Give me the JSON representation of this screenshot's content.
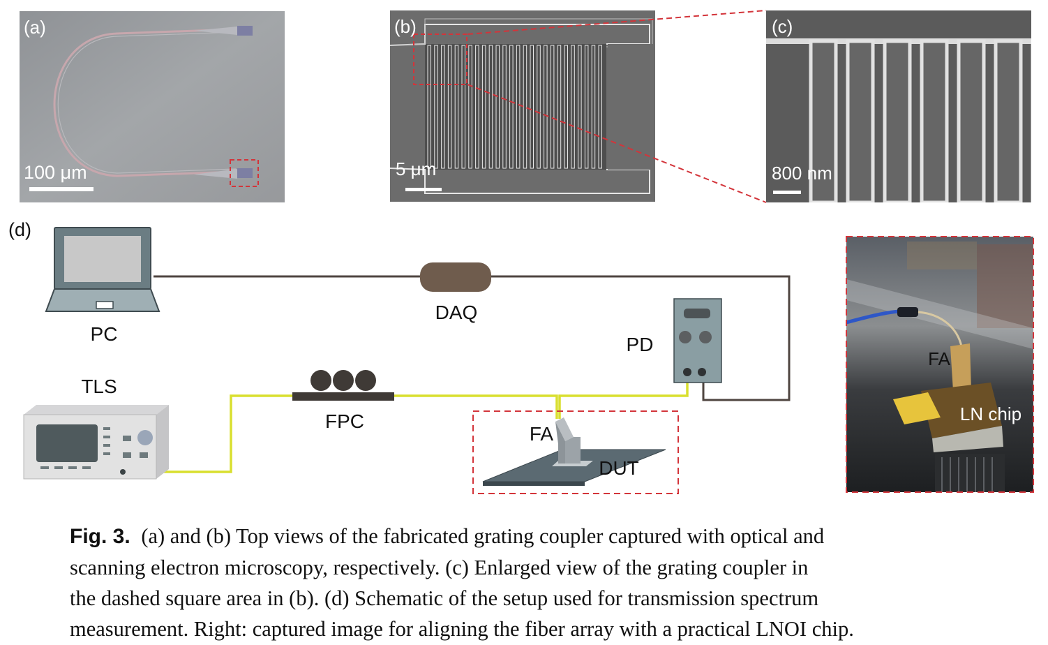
{
  "panels": {
    "a": {
      "label": "(a)",
      "scale_bar": "100 μm"
    },
    "b": {
      "label": "(b)",
      "scale_bar": "5 μm"
    },
    "c": {
      "label": "(c)",
      "scale_bar": "800 nm"
    },
    "d": {
      "label": "(d)"
    }
  },
  "setup": {
    "pc": "PC",
    "daq": "DAQ",
    "pd": "PD",
    "tls": "TLS",
    "fpc": "FPC",
    "fa": "FA",
    "dut": "DUT"
  },
  "photo": {
    "fa": "FA",
    "chip": "LN chip"
  },
  "caption": {
    "lead": "Fig. 3.",
    "lines": [
      "(a) and (b) Top views of the fabricated grating coupler captured with optical and",
      "scanning electron microscopy, respectively.  (c) Enlarged view of the grating coupler in",
      "the dashed square area in (b).  (d) Schematic of the setup used for transmission spectrum",
      "measurement. Right: captured image for aligning the fiber array with a practical LNOI chip."
    ]
  },
  "colors": {
    "fiber_yellow": "#d9df2f",
    "cable_brown": "#4f4540",
    "daq_body": "#6f5c4d",
    "dash_red": "#d3343a"
  }
}
